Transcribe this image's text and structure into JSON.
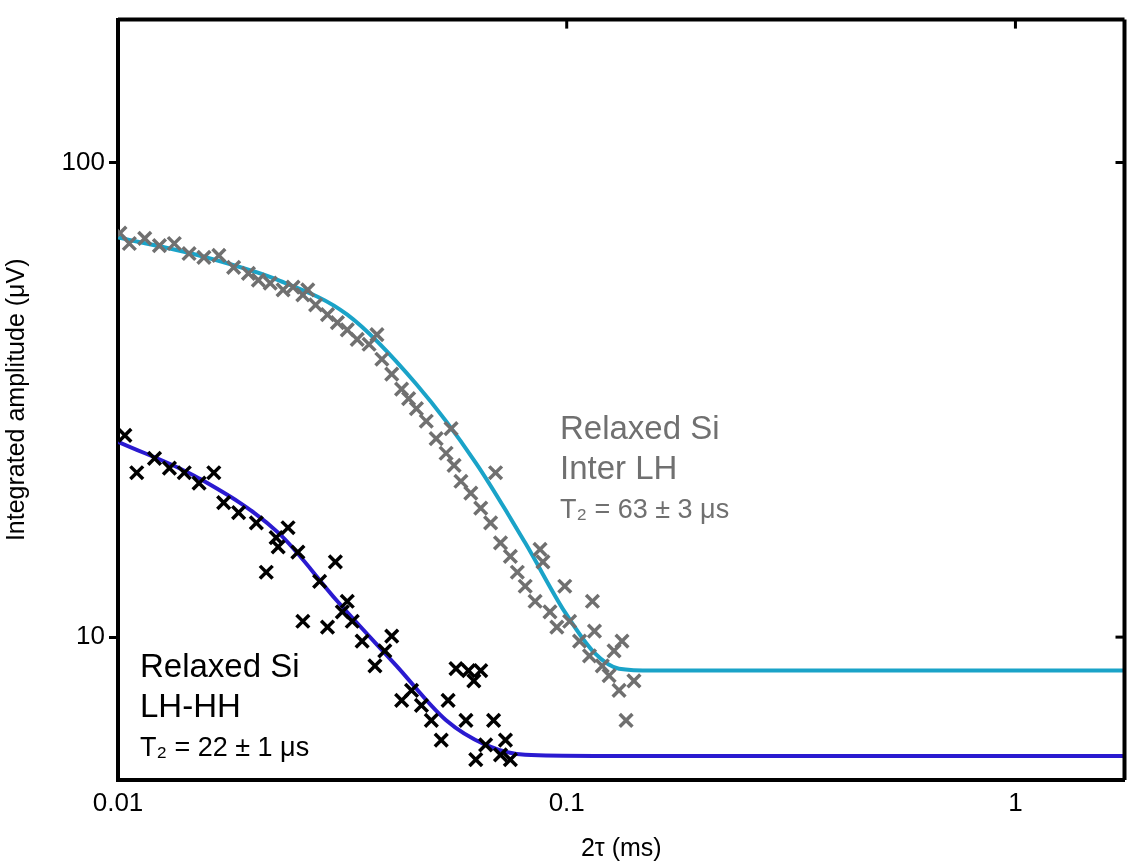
{
  "chart_data": {
    "type": "scatter",
    "xlabel": "2τ (ms)",
    "ylabel": "Integrated amplitude (μV)",
    "log": "xy",
    "grid": false,
    "xlim": [
      0.01,
      1.75
    ],
    "ylim": [
      5,
      200
    ],
    "xticks": [
      0.01,
      0.1,
      1
    ],
    "yticks": [
      10,
      100
    ],
    "annotations": [
      "T₂ = 63 ± 3 μs",
      "T₂ = 22 ± 1 μs"
    ],
    "series": [
      {
        "name": "Relaxed Si\nInter LH",
        "marker": "cross",
        "color": "#707070",
        "x": [
          0.0101,
          0.0106,
          0.01147,
          0.01237,
          0.01335,
          0.0144,
          0.01554,
          0.01678,
          0.0181,
          0.01953,
          0.02055,
          0.02184,
          0.02333,
          0.02455,
          0.02582,
          0.02757,
          0.0293,
          0.03083,
          0.03243,
          0.03412,
          0.03627,
          0.03873,
          0.04074,
          0.04285,
          0.04443,
          0.04624,
          0.04864,
          0.05117,
          0.05385,
          0.0561,
          0.0581,
          0.06113,
          0.06432,
          0.06767,
          0.07119,
          0.07489,
          0.07762,
          0.08081,
          0.08502,
          0.08852,
          0.09176,
          0.09506,
          0.099,
          0.1015,
          0.1068,
          0.1124,
          0.1153,
          0.12,
          0.1243,
          0.1275,
          0.1308,
          0.1356,
          0.1412,
          0.1328,
          0.1141,
          0.0872,
          0.06941,
          0.05524,
          0.03776,
          0.02648
        ],
        "values": [
          71,
          67.5,
          69.2,
          66.8,
          67.5,
          64.3,
          63.1,
          63.7,
          60.1,
          58.4,
          56.5,
          55.7,
          53.9,
          54.6,
          52.6,
          50.1,
          47.8,
          46.0,
          44.4,
          42.4,
          41.4,
          38.5,
          35.8,
          33.3,
          31.8,
          30.3,
          28.5,
          26.2,
          24.4,
          23.0,
          21.3,
          20.1,
          18.7,
          17.4,
          15.8,
          14.8,
          13.7,
          12.8,
          11.9,
          14.4,
          11.3,
          10.5,
          12.8,
          10.8,
          9.81,
          9.13,
          10.3,
          8.7,
          8.3,
          9.35,
          7.72,
          6.68,
          8.09,
          9.81,
          11.9,
          15.3,
          22.2,
          27.5,
          43.4,
          53.9
        ]
      },
      {
        "name": "Relaxed Si\nLH-HH",
        "marker": "cross",
        "color": "#000000",
        "x": [
          0.01036,
          0.01101,
          0.01206,
          0.01302,
          0.01405,
          0.01516,
          0.01635,
          0.0172,
          0.01857,
          0.02034,
          0.0214,
          0.02251,
          0.02393,
          0.02517,
          0.02582,
          0.02814,
          0.0293,
          0.03051,
          0.03162,
          0.03327,
          0.035,
          0.03738,
          0.03932,
          0.04074,
          0.04287,
          0.0451,
          0.04745,
          0.04992,
          0.05252,
          0.05441,
          0.05666,
          0.05962,
          0.06209,
          0.06432,
          0.06596,
          0.06871,
          0.07119,
          0.07302,
          0.07489,
          0.06271,
          0.0604,
          0.03243,
          0.02275
        ],
        "values": [
          26.6,
          22.2,
          23.8,
          22.7,
          22.2,
          21.1,
          22.2,
          19.2,
          18.3,
          17.4,
          13.7,
          16.2,
          17.0,
          15.1,
          10.8,
          13.1,
          10.5,
          14.4,
          11.3,
          10.8,
          9.81,
          8.7,
          9.35,
          10.05,
          7.36,
          7.72,
          7.18,
          6.68,
          6.07,
          7.36,
          8.58,
          6.68,
          8.09,
          8.5,
          5.93,
          6.68,
          5.65,
          6.07,
          5.52,
          5.52,
          8.5,
          11.9,
          15.5
        ]
      },
      {
        "type": "line",
        "marker": "none",
        "color": "#1aa3c8",
        "x": [
          0.01,
          0.01516,
          0.02275,
          0.03243,
          0.04624,
          0.06271,
          0.08081,
          0.099,
          0.1153,
          0.1308,
          0.1563,
          1.75
        ],
        "values": [
          69.5,
          63.7,
          56.5,
          47.8,
          34.1,
          23.3,
          15.8,
          11.3,
          9.26,
          8.58,
          8.5,
          8.5
        ]
      },
      {
        "type": "line",
        "marker": "none",
        "color": "#2a1ad0",
        "x": [
          0.01,
          0.01516,
          0.02275,
          0.03083,
          0.04175,
          0.05385,
          0.06596,
          0.08081,
          0.1153,
          1.75
        ],
        "values": [
          25.8,
          21.6,
          16.6,
          11.9,
          8.7,
          6.68,
          5.93,
          5.65,
          5.62,
          5.62
        ]
      }
    ]
  }
}
